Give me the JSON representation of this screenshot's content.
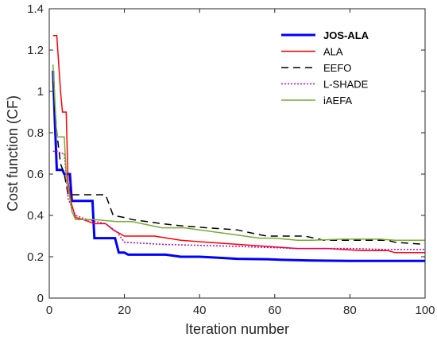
{
  "chart_data": {
    "type": "line",
    "title": "",
    "xlabel": "Iteration number",
    "ylabel": "Cost function (CF)",
    "xlim": [
      0,
      100
    ],
    "ylim": [
      0,
      1.4
    ],
    "xticks": [
      0,
      20,
      40,
      60,
      80,
      100
    ],
    "xtick_labels": [
      "0",
      "20",
      "40",
      "60",
      "80",
      "100"
    ],
    "yticks": [
      0,
      0.2,
      0.4,
      0.6,
      0.8,
      1,
      1.2,
      1.4
    ],
    "ytick_labels": [
      "0",
      "0.2",
      "0.4",
      "0.6",
      "0.8",
      "1",
      "1.2",
      "1.4"
    ],
    "grid": false,
    "legend_position": "top-right",
    "series": [
      {
        "name": "JOS-ALA",
        "color": "#0000ff",
        "dash": "solid",
        "width": 3,
        "bold_label": true,
        "points": [
          [
            1,
            1.1
          ],
          [
            1.5,
            0.85
          ],
          [
            2,
            0.62
          ],
          [
            3.5,
            0.62
          ],
          [
            4,
            0.6
          ],
          [
            5.5,
            0.6
          ],
          [
            6,
            0.47
          ],
          [
            11.5,
            0.47
          ],
          [
            12,
            0.29
          ],
          [
            17.5,
            0.29
          ],
          [
            18.5,
            0.22
          ],
          [
            20,
            0.22
          ],
          [
            21,
            0.21
          ],
          [
            24,
            0.21
          ],
          [
            31,
            0.21
          ],
          [
            35,
            0.2
          ],
          [
            40,
            0.2
          ],
          [
            45,
            0.195
          ],
          [
            50,
            0.19
          ],
          [
            58,
            0.188
          ],
          [
            62,
            0.185
          ],
          [
            70,
            0.182
          ],
          [
            80,
            0.18
          ],
          [
            90,
            0.18
          ],
          [
            100,
            0.18
          ]
        ]
      },
      {
        "name": "ALA",
        "color": "#ff0000",
        "dash": "solid",
        "width": 1.5,
        "bold_label": false,
        "points": [
          [
            1,
            1.27
          ],
          [
            2,
            1.27
          ],
          [
            3,
            1.0
          ],
          [
            3.5,
            0.9
          ],
          [
            4.5,
            0.9
          ],
          [
            5,
            0.56
          ],
          [
            6,
            0.45
          ],
          [
            7,
            0.39
          ],
          [
            9,
            0.38
          ],
          [
            12,
            0.36
          ],
          [
            15,
            0.36
          ],
          [
            17,
            0.33
          ],
          [
            20,
            0.3
          ],
          [
            28,
            0.3
          ],
          [
            35,
            0.28
          ],
          [
            42,
            0.27
          ],
          [
            50,
            0.26
          ],
          [
            58,
            0.25
          ],
          [
            66,
            0.24
          ],
          [
            74,
            0.24
          ],
          [
            83,
            0.23
          ],
          [
            90,
            0.23
          ],
          [
            92,
            0.22
          ],
          [
            100,
            0.22
          ]
        ]
      },
      {
        "name": "EEFO",
        "color": "#000000",
        "dash": "9,6",
        "width": 1.5,
        "bold_label": false,
        "points": [
          [
            1,
            1.05
          ],
          [
            2,
            0.8
          ],
          [
            3,
            0.65
          ],
          [
            4,
            0.6
          ],
          [
            5,
            0.5
          ],
          [
            10,
            0.5
          ],
          [
            15,
            0.5
          ],
          [
            16,
            0.45
          ],
          [
            17,
            0.4
          ],
          [
            20,
            0.39
          ],
          [
            22,
            0.38
          ],
          [
            26,
            0.37
          ],
          [
            30,
            0.36
          ],
          [
            35,
            0.35
          ],
          [
            42,
            0.34
          ],
          [
            50,
            0.33
          ],
          [
            55,
            0.31
          ],
          [
            58,
            0.3
          ],
          [
            64,
            0.3
          ],
          [
            68,
            0.3
          ],
          [
            73,
            0.28
          ],
          [
            80,
            0.28
          ],
          [
            90,
            0.28
          ],
          [
            92,
            0.27
          ],
          [
            100,
            0.26
          ]
        ]
      },
      {
        "name": "L-SHADE",
        "color": "#bf00bf",
        "dash": "2,2",
        "width": 1.5,
        "bold_label": false,
        "points": [
          [
            1,
            0.71
          ],
          [
            2.5,
            0.71
          ],
          [
            3,
            0.7
          ],
          [
            4,
            0.7
          ],
          [
            5,
            0.48
          ],
          [
            7,
            0.4
          ],
          [
            10,
            0.38
          ],
          [
            15,
            0.36
          ],
          [
            18,
            0.32
          ],
          [
            20,
            0.27
          ],
          [
            25,
            0.265
          ],
          [
            30,
            0.26
          ],
          [
            40,
            0.255
          ],
          [
            50,
            0.25
          ],
          [
            58,
            0.245
          ],
          [
            66,
            0.24
          ],
          [
            74,
            0.24
          ],
          [
            80,
            0.24
          ],
          [
            90,
            0.235
          ],
          [
            100,
            0.235
          ]
        ]
      },
      {
        "name": "iAEFA",
        "color": "#77ac30",
        "dash": "solid",
        "width": 1.5,
        "bold_label": false,
        "points": [
          [
            1,
            1.13
          ],
          [
            2,
            0.78
          ],
          [
            4,
            0.78
          ],
          [
            4.5,
            0.6
          ],
          [
            6,
            0.42
          ],
          [
            7,
            0.38
          ],
          [
            12,
            0.38
          ],
          [
            18,
            0.37
          ],
          [
            22,
            0.37
          ],
          [
            30,
            0.34
          ],
          [
            36,
            0.34
          ],
          [
            40,
            0.33
          ],
          [
            48,
            0.31
          ],
          [
            56,
            0.29
          ],
          [
            60,
            0.29
          ],
          [
            66,
            0.28
          ],
          [
            70,
            0.28
          ],
          [
            78,
            0.285
          ],
          [
            88,
            0.285
          ],
          [
            92,
            0.28
          ],
          [
            100,
            0.28
          ]
        ]
      }
    ]
  }
}
